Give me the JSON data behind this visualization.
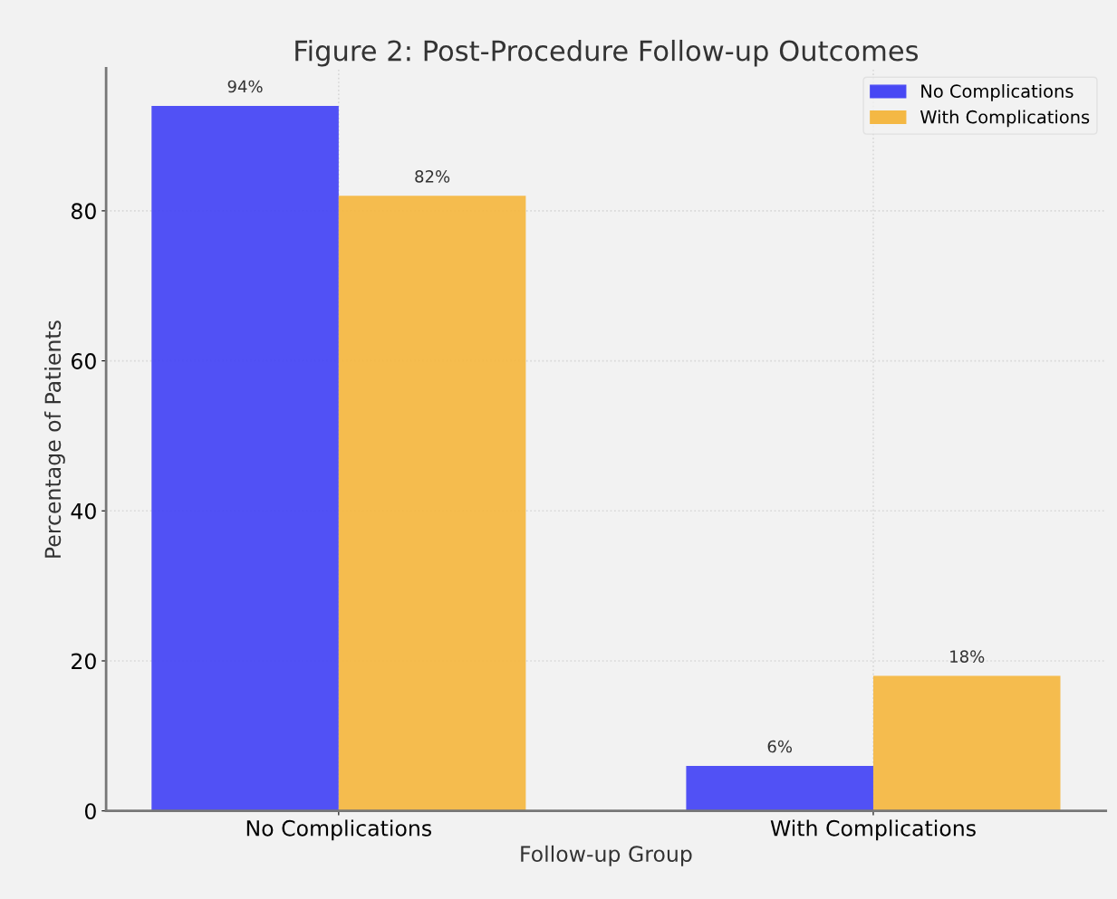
{
  "chart_data": {
    "type": "bar",
    "title": "Figure 2: Post-Procedure Follow-up Outcomes",
    "xlabel": "Follow-up Group",
    "ylabel": "Percentage of Patients",
    "categories": [
      "No Complications",
      "With Complications"
    ],
    "series": [
      {
        "name": "No Complications",
        "color": "#4848f4",
        "values": [
          94,
          6
        ],
        "value_labels": [
          "94%",
          "6%"
        ]
      },
      {
        "name": "With Complications",
        "color": "#f4b844",
        "values": [
          82,
          18
        ],
        "value_labels": [
          "82%",
          "18%"
        ]
      }
    ],
    "ylim": [
      0,
      99
    ],
    "yticks": [
      0,
      20,
      40,
      60,
      80
    ],
    "grid": true,
    "legend": "top right"
  }
}
